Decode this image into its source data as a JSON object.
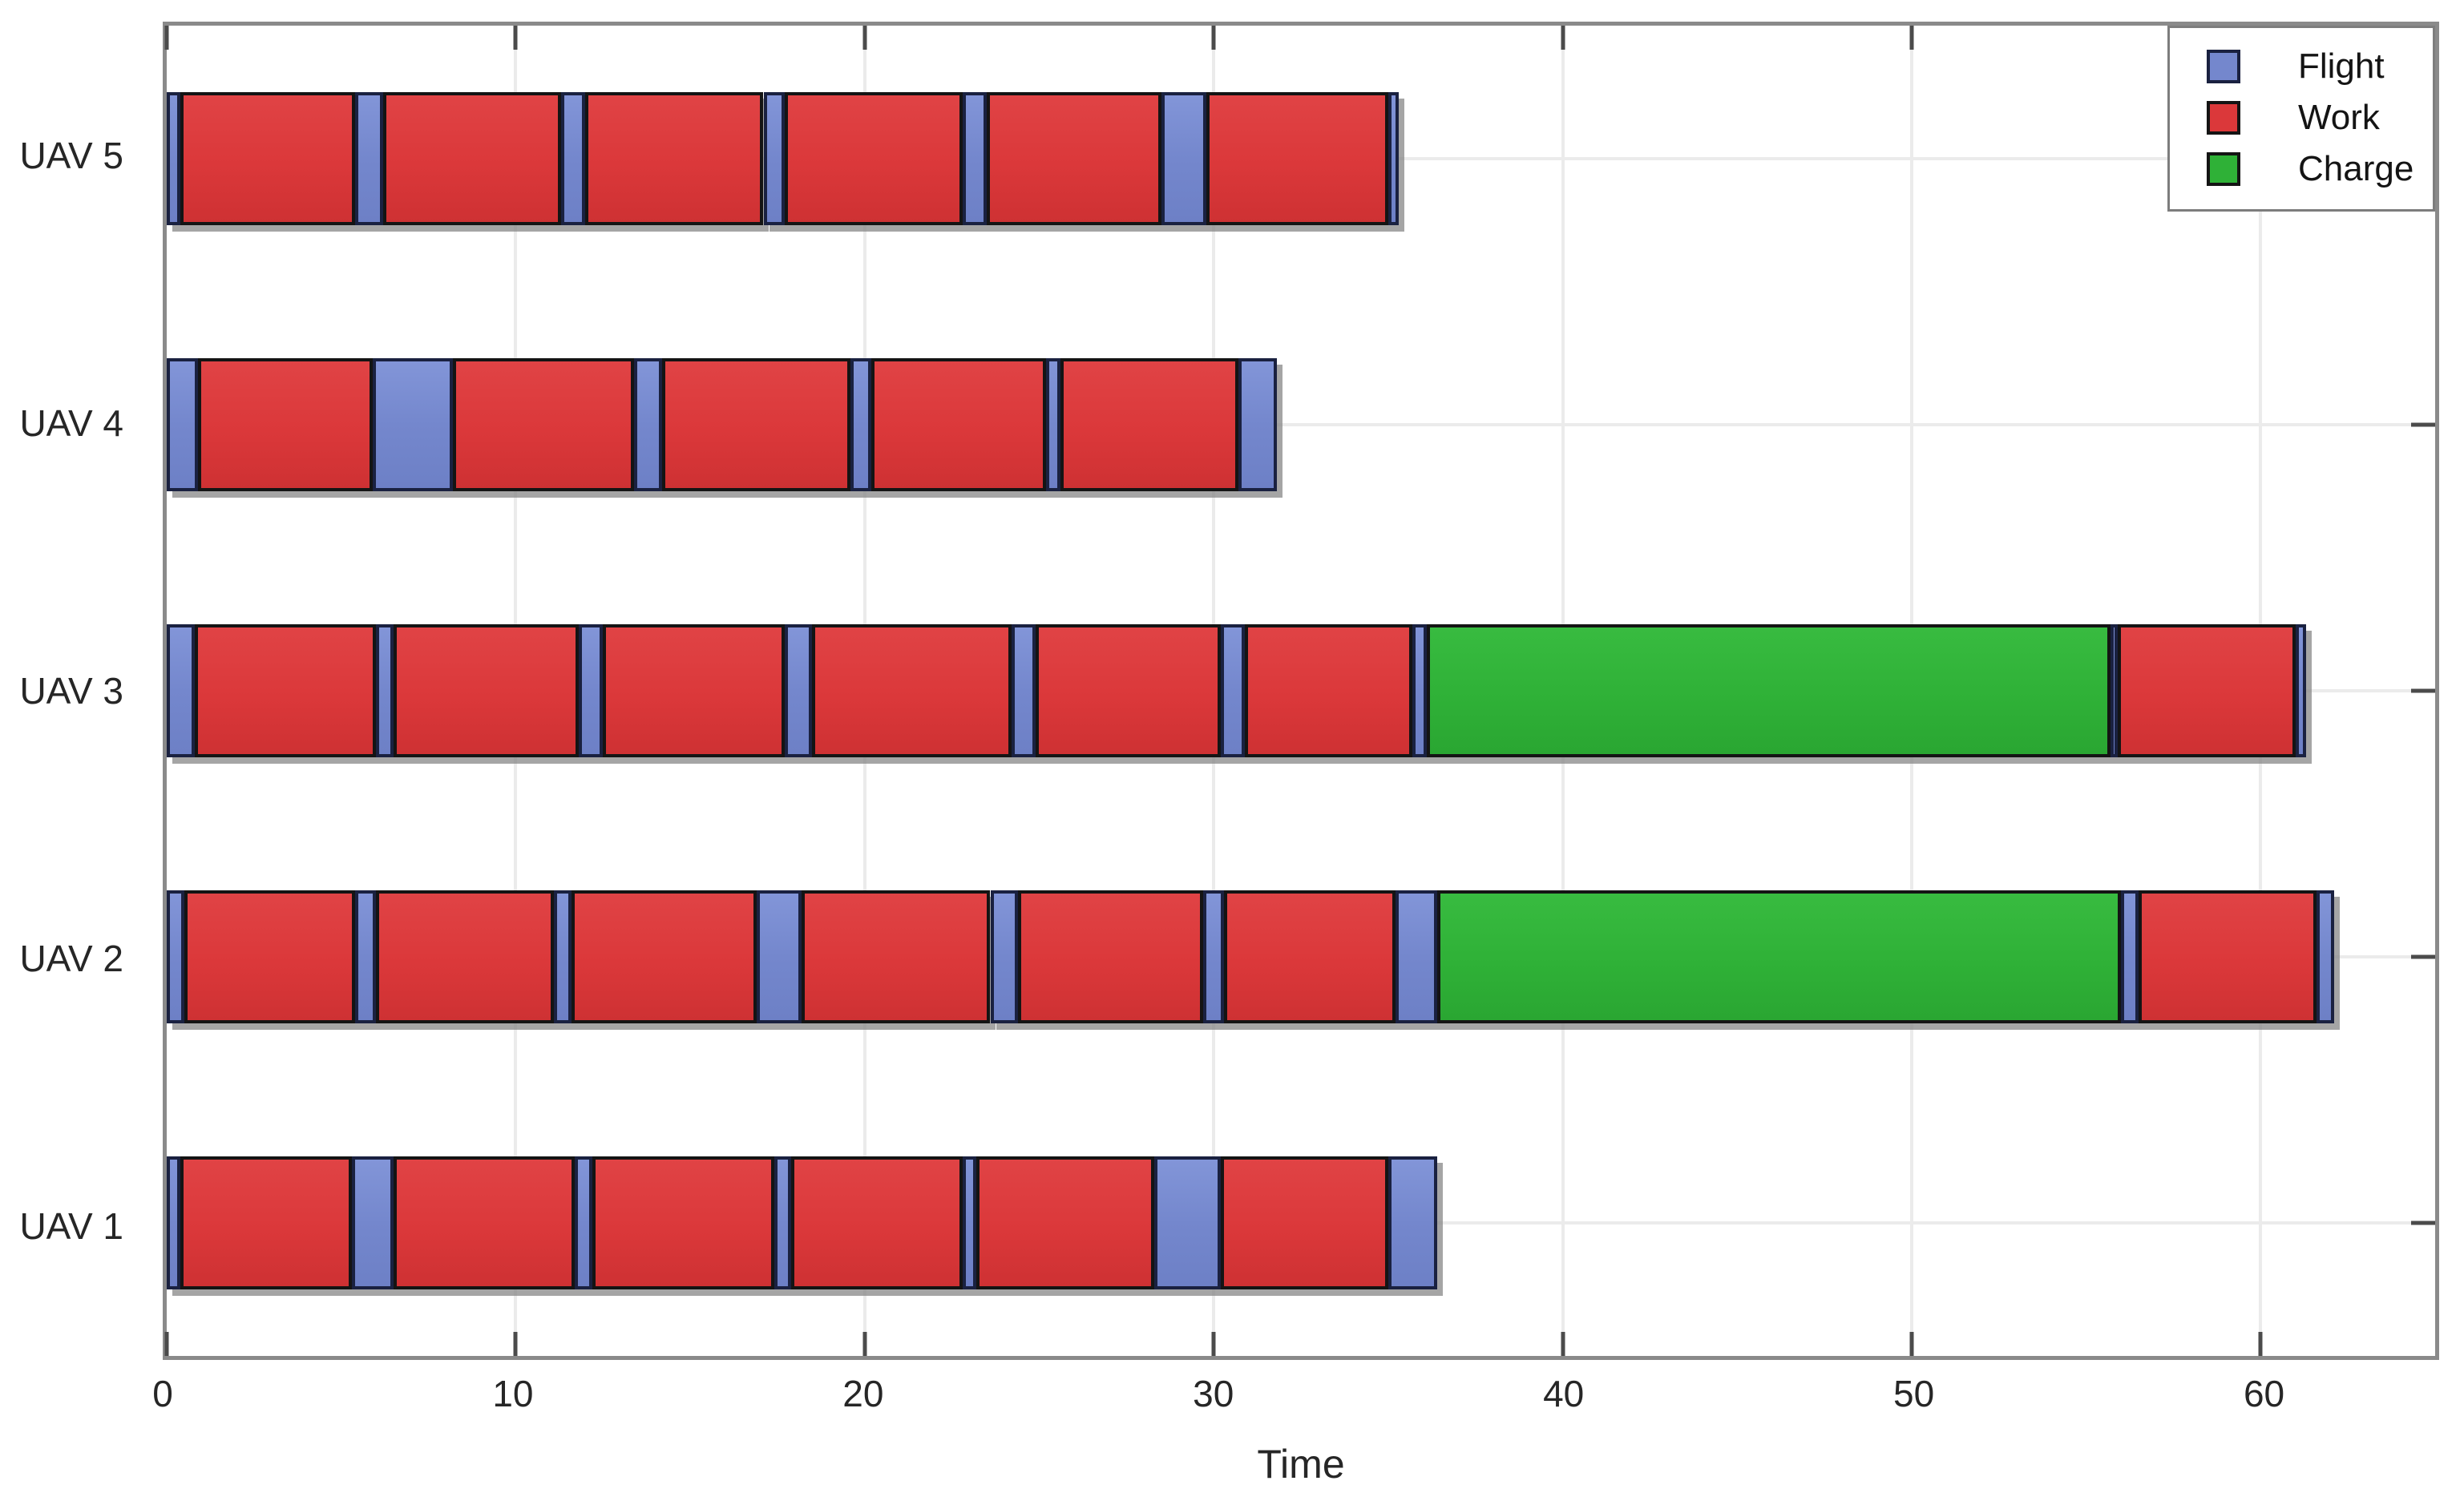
{
  "chart_data": {
    "type": "gantt",
    "title": "",
    "xlabel": "Time",
    "ylabel": "",
    "xlim": [
      0,
      65
    ],
    "xticks": [
      0,
      10,
      20,
      30,
      40,
      50,
      60
    ],
    "grid": true,
    "legend_position": "top-right",
    "legend": [
      {
        "label": "Flight",
        "color": "#7487CD",
        "border": "#1a2140"
      },
      {
        "label": "Work",
        "color": "#DB383A",
        "border": "#141414"
      },
      {
        "label": "Charge",
        "color": "#2FB137",
        "border": "#141414"
      }
    ],
    "segment_colors": {
      "flight": "#7487CD",
      "work": "#DB383A",
      "charge": "#2FB137"
    },
    "rows_top_to_bottom": [
      "UAV 5",
      "UAV 4",
      "UAV 3",
      "UAV 2",
      "UAV 1"
    ],
    "series": [
      {
        "name": "UAV 5",
        "segments": [
          {
            "type": "flight",
            "start": 0,
            "end": 0.4
          },
          {
            "type": "work",
            "start": 0.4,
            "end": 5.4
          },
          {
            "type": "flight",
            "start": 5.4,
            "end": 6.2
          },
          {
            "type": "work",
            "start": 6.2,
            "end": 11.3
          },
          {
            "type": "flight",
            "start": 11.3,
            "end": 12.0
          },
          {
            "type": "work",
            "start": 12.0,
            "end": 17.1
          },
          {
            "type": "flight",
            "start": 17.1,
            "end": 17.7
          },
          {
            "type": "work",
            "start": 17.7,
            "end": 22.8
          },
          {
            "type": "flight",
            "start": 22.8,
            "end": 23.5
          },
          {
            "type": "work",
            "start": 23.5,
            "end": 28.5
          },
          {
            "type": "flight",
            "start": 28.5,
            "end": 29.8
          },
          {
            "type": "work",
            "start": 29.8,
            "end": 35.0
          },
          {
            "type": "flight",
            "start": 35.0,
            "end": 35.3
          }
        ]
      },
      {
        "name": "UAV 4",
        "segments": [
          {
            "type": "flight",
            "start": 0,
            "end": 0.9
          },
          {
            "type": "work",
            "start": 0.9,
            "end": 5.9
          },
          {
            "type": "flight",
            "start": 5.9,
            "end": 8.2
          },
          {
            "type": "work",
            "start": 8.2,
            "end": 13.4
          },
          {
            "type": "flight",
            "start": 13.4,
            "end": 14.2
          },
          {
            "type": "work",
            "start": 14.2,
            "end": 19.6
          },
          {
            "type": "flight",
            "start": 19.6,
            "end": 20.2
          },
          {
            "type": "work",
            "start": 20.2,
            "end": 25.2
          },
          {
            "type": "flight",
            "start": 25.2,
            "end": 25.6
          },
          {
            "type": "work",
            "start": 25.6,
            "end": 30.7
          },
          {
            "type": "flight",
            "start": 30.7,
            "end": 31.8
          }
        ]
      },
      {
        "name": "UAV 3",
        "segments": [
          {
            "type": "flight",
            "start": 0,
            "end": 0.8
          },
          {
            "type": "work",
            "start": 0.8,
            "end": 6.0
          },
          {
            "type": "flight",
            "start": 6.0,
            "end": 6.5
          },
          {
            "type": "work",
            "start": 6.5,
            "end": 11.8
          },
          {
            "type": "flight",
            "start": 11.8,
            "end": 12.5
          },
          {
            "type": "work",
            "start": 12.5,
            "end": 17.7
          },
          {
            "type": "flight",
            "start": 17.7,
            "end": 18.5
          },
          {
            "type": "work",
            "start": 18.5,
            "end": 24.2
          },
          {
            "type": "flight",
            "start": 24.2,
            "end": 24.9
          },
          {
            "type": "work",
            "start": 24.9,
            "end": 30.2
          },
          {
            "type": "flight",
            "start": 30.2,
            "end": 30.9
          },
          {
            "type": "work",
            "start": 30.9,
            "end": 35.7
          },
          {
            "type": "flight",
            "start": 35.7,
            "end": 36.1
          },
          {
            "type": "charge",
            "start": 36.1,
            "end": 55.7
          },
          {
            "type": "flight",
            "start": 55.7,
            "end": 55.9
          },
          {
            "type": "work",
            "start": 55.9,
            "end": 61.0
          },
          {
            "type": "flight",
            "start": 61.0,
            "end": 61.3
          }
        ]
      },
      {
        "name": "UAV 2",
        "segments": [
          {
            "type": "flight",
            "start": 0,
            "end": 0.5
          },
          {
            "type": "work",
            "start": 0.5,
            "end": 5.4
          },
          {
            "type": "flight",
            "start": 5.4,
            "end": 6.0
          },
          {
            "type": "work",
            "start": 6.0,
            "end": 11.1
          },
          {
            "type": "flight",
            "start": 11.1,
            "end": 11.6
          },
          {
            "type": "work",
            "start": 11.6,
            "end": 16.9
          },
          {
            "type": "flight",
            "start": 16.9,
            "end": 18.2
          },
          {
            "type": "work",
            "start": 18.2,
            "end": 23.6
          },
          {
            "type": "flight",
            "start": 23.6,
            "end": 24.4
          },
          {
            "type": "work",
            "start": 24.4,
            "end": 29.7
          },
          {
            "type": "flight",
            "start": 29.7,
            "end": 30.3
          },
          {
            "type": "work",
            "start": 30.3,
            "end": 35.2
          },
          {
            "type": "flight",
            "start": 35.2,
            "end": 36.4
          },
          {
            "type": "charge",
            "start": 36.4,
            "end": 56.0
          },
          {
            "type": "flight",
            "start": 56.0,
            "end": 56.5
          },
          {
            "type": "work",
            "start": 56.5,
            "end": 61.6
          },
          {
            "type": "flight",
            "start": 61.6,
            "end": 62.1
          }
        ]
      },
      {
        "name": "UAV 1",
        "segments": [
          {
            "type": "flight",
            "start": 0,
            "end": 0.4
          },
          {
            "type": "work",
            "start": 0.4,
            "end": 5.3
          },
          {
            "type": "flight",
            "start": 5.3,
            "end": 6.5
          },
          {
            "type": "work",
            "start": 6.5,
            "end": 11.7
          },
          {
            "type": "flight",
            "start": 11.7,
            "end": 12.2
          },
          {
            "type": "work",
            "start": 12.2,
            "end": 17.4
          },
          {
            "type": "flight",
            "start": 17.4,
            "end": 17.9
          },
          {
            "type": "work",
            "start": 17.9,
            "end": 22.8
          },
          {
            "type": "flight",
            "start": 22.8,
            "end": 23.2
          },
          {
            "type": "work",
            "start": 23.2,
            "end": 28.3
          },
          {
            "type": "flight",
            "start": 28.3,
            "end": 30.2
          },
          {
            "type": "work",
            "start": 30.2,
            "end": 35.0
          },
          {
            "type": "flight",
            "start": 35.0,
            "end": 36.4
          }
        ]
      }
    ]
  }
}
